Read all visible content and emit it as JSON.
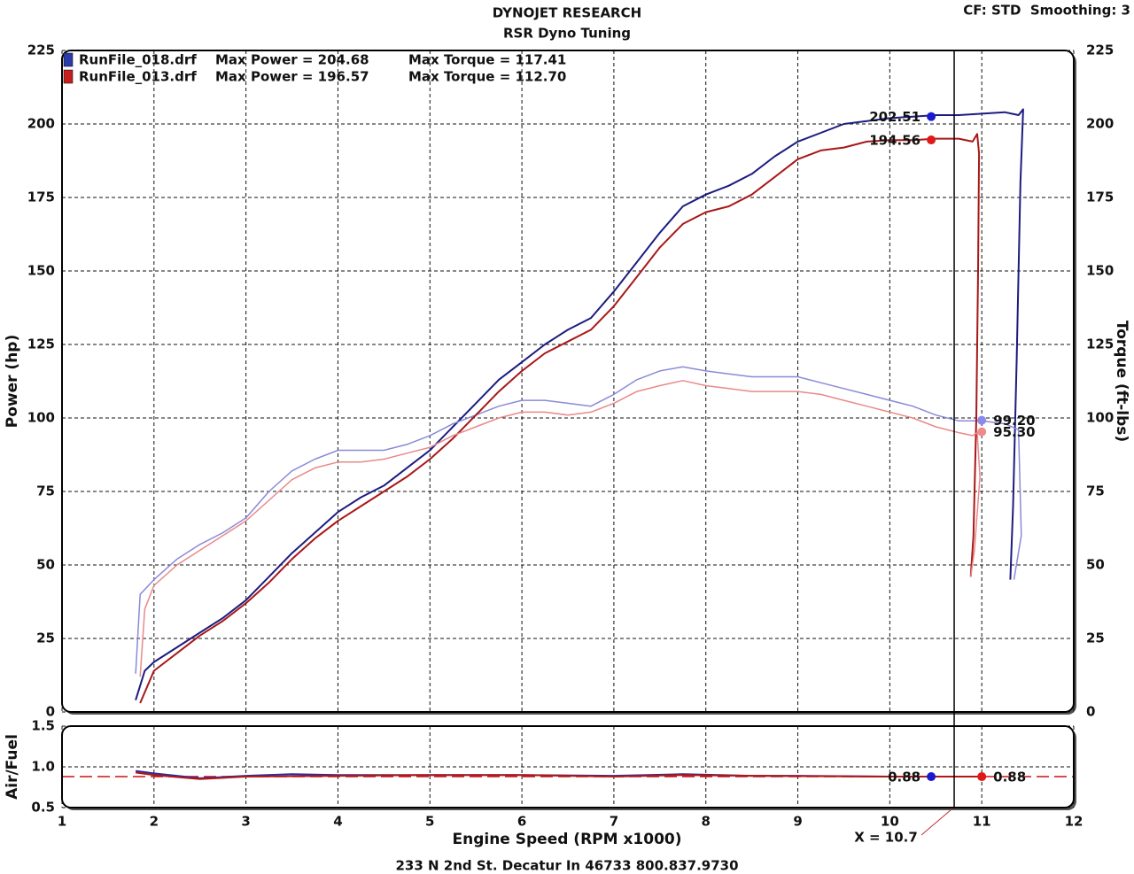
{
  "header": {
    "title": "DYNOJET RESEARCH",
    "subtitle": "RSR Dyno Tuning",
    "settings": "CF: STD  Smoothing: 3",
    "footer": "233 N 2nd St. Decatur In 46733 800.837.9730"
  },
  "chart_data": [
    {
      "type": "line",
      "ylabel": "Power (hp)",
      "y2label": "Torque (ft-lbs)",
      "xlim": [
        1,
        12
      ],
      "xticks": [
        1,
        2,
        3,
        4,
        5,
        6,
        7,
        8,
        9,
        10,
        11,
        12
      ],
      "ylim": [
        0,
        225
      ],
      "yticks": [
        0,
        25,
        50,
        75,
        100,
        125,
        150,
        175,
        200,
        225
      ],
      "y2lim": [
        0,
        225
      ],
      "y2ticks": [
        0,
        25,
        50,
        75,
        100,
        125,
        150,
        175,
        200,
        225
      ],
      "grid": true,
      "legend": [
        {
          "name": "RunFile_018.drf",
          "max_power": "Max Power = 204.68",
          "max_torque": "Max Torque = 117.41",
          "color": "#2a3aa8"
        },
        {
          "name": "RunFile_013.drf",
          "max_power": "Max Power = 196.57",
          "max_torque": "Max Torque = 112.70",
          "color": "#c42020"
        }
      ],
      "cursor": {
        "x": 10.7,
        "label": "X = 10.7"
      },
      "series": [
        {
          "color": "#1c1c80",
          "x": [
            1.8,
            1.9,
            2.0,
            2.25,
            2.5,
            2.75,
            3.0,
            3.25,
            3.5,
            3.75,
            4.0,
            4.25,
            4.5,
            4.75,
            5.0,
            5.25,
            5.5,
            5.75,
            6.0,
            6.25,
            6.5,
            6.75,
            7.0,
            7.25,
            7.5,
            7.75,
            8.0,
            8.25,
            8.5,
            8.75,
            9.0,
            9.25,
            9.5,
            9.75,
            10.0,
            10.25,
            10.5,
            10.75,
            11.0,
            11.25,
            11.4,
            11.45,
            11.42,
            11.38,
            11.34,
            11.31
          ],
          "values": [
            4,
            14,
            17,
            22,
            27,
            32,
            38,
            46,
            54,
            61,
            68,
            73,
            77,
            83,
            89,
            97,
            105,
            113,
            119,
            125,
            130,
            134,
            143,
            153,
            163,
            172,
            176,
            179,
            183,
            189,
            194,
            197,
            200,
            201,
            202,
            202.5,
            203,
            203,
            203.5,
            204,
            203,
            205,
            180,
            120,
            70,
            45
          ]
        },
        {
          "color": "#8a8ad8",
          "axis": "y2",
          "x": [
            1.8,
            1.85,
            2.0,
            2.25,
            2.5,
            2.75,
            3.0,
            3.25,
            3.5,
            3.75,
            4.0,
            4.25,
            4.5,
            4.75,
            5.0,
            5.25,
            5.5,
            5.75,
            6.0,
            6.25,
            6.5,
            6.75,
            7.0,
            7.25,
            7.5,
            7.75,
            8.0,
            8.25,
            8.5,
            8.75,
            9.0,
            9.25,
            9.5,
            9.75,
            10.0,
            10.25,
            10.5,
            10.75,
            11.0,
            11.25,
            11.4,
            11.43,
            11.35
          ],
          "values": [
            13,
            40,
            45,
            52,
            57,
            61,
            66,
            75,
            82,
            86,
            89,
            89,
            89,
            91,
            94,
            98,
            101,
            104,
            106,
            106,
            105,
            104,
            108,
            113,
            116,
            117.4,
            116,
            115,
            114,
            114,
            114,
            112,
            110,
            108,
            106,
            104,
            101,
            99,
            99,
            98,
            96,
            60,
            45
          ]
        },
        {
          "color": "#a81818",
          "x": [
            1.85,
            2.0,
            2.25,
            2.5,
            2.75,
            3.0,
            3.25,
            3.5,
            3.75,
            4.0,
            4.25,
            4.5,
            4.75,
            5.0,
            5.25,
            5.5,
            5.75,
            6.0,
            6.25,
            6.5,
            6.75,
            7.0,
            7.25,
            7.5,
            7.75,
            8.0,
            8.25,
            8.5,
            8.75,
            9.0,
            9.25,
            9.5,
            9.75,
            10.0,
            10.25,
            10.5,
            10.75,
            10.9,
            10.95,
            10.97,
            10.96,
            10.94,
            10.91,
            10.88
          ],
          "values": [
            3,
            14,
            20,
            26,
            31,
            37,
            44,
            52,
            59,
            65,
            70,
            75,
            80,
            86,
            93,
            101,
            109,
            116,
            122,
            126,
            130,
            138,
            148,
            158,
            166,
            170,
            172,
            176,
            182,
            188,
            191,
            192,
            194,
            194.5,
            194.5,
            195,
            195,
            194,
            196.6,
            190,
            150,
            100,
            60,
            46
          ]
        },
        {
          "color": "#e88a8a",
          "axis": "y2",
          "x": [
            1.85,
            1.9,
            2.0,
            2.25,
            2.5,
            2.75,
            3.0,
            3.25,
            3.5,
            3.75,
            4.0,
            4.25,
            4.5,
            4.75,
            5.0,
            5.25,
            5.5,
            5.75,
            6.0,
            6.25,
            6.5,
            6.75,
            7.0,
            7.25,
            7.5,
            7.75,
            8.0,
            8.25,
            8.5,
            8.75,
            9.0,
            9.25,
            9.5,
            9.75,
            10.0,
            10.25,
            10.5,
            10.75,
            10.9,
            10.95,
            10.98,
            10.92,
            10.88
          ],
          "values": [
            12,
            35,
            43,
            50,
            55,
            60,
            65,
            72,
            79,
            83,
            85,
            85,
            86,
            88,
            90,
            94,
            97,
            100,
            102,
            102,
            101,
            102,
            105,
            109,
            111,
            112.7,
            111,
            110,
            109,
            109,
            109,
            108,
            106,
            104,
            102,
            100,
            97,
            95,
            94,
            95,
            80,
            55,
            46
          ]
        }
      ],
      "markers": {
        "x": [
          10.45,
          10.45,
          11.0,
          11.0
        ],
        "values": [
          202.51,
          194.56,
          99.2,
          95.3
        ],
        "value_labels": [
          "202.51",
          "194.56",
          "99.20",
          "95.30"
        ],
        "colors": [
          "#1a1ad0",
          "#e01818",
          "#8a8ae8",
          "#f08a8a"
        ]
      }
    },
    {
      "type": "line",
      "ylabel": "Air/Fuel",
      "xlabel": "Engine Speed (RPM x1000)",
      "xlim": [
        1,
        12
      ],
      "xticks": [
        1,
        2,
        3,
        4,
        5,
        6,
        7,
        8,
        9,
        10,
        11,
        12
      ],
      "ylim": [
        0.5,
        1.5
      ],
      "yticks": [
        {
          "value": 0.5,
          "label": "0.5"
        },
        {
          "value": 1.0,
          "label": "1.0"
        },
        {
          "value": 1.5,
          "label": "1.5"
        }
      ],
      "grid": true,
      "reference_line": {
        "value": 0.88,
        "color": "#cc1010"
      },
      "series": [
        {
          "color": "#2a2aa0",
          "x": [
            1.8,
            2.0,
            2.5,
            3.0,
            3.5,
            4.0,
            5.0,
            6.0,
            7.0,
            7.75,
            8.5,
            9.0,
            10.0,
            10.7,
            11.0
          ],
          "values": [
            0.95,
            0.92,
            0.86,
            0.89,
            0.91,
            0.9,
            0.9,
            0.9,
            0.89,
            0.91,
            0.89,
            0.89,
            0.88,
            0.88,
            0.88
          ]
        },
        {
          "color": "#b01818",
          "x": [
            1.8,
            2.0,
            2.5,
            3.0,
            4.0,
            5.0,
            6.0,
            7.0,
            7.75,
            8.5,
            10.0,
            11.0
          ],
          "values": [
            0.93,
            0.9,
            0.85,
            0.88,
            0.89,
            0.9,
            0.9,
            0.88,
            0.9,
            0.89,
            0.88,
            0.88
          ]
        }
      ],
      "markers": {
        "x": [
          10.45,
          11.0
        ],
        "values": [
          0.88,
          0.88
        ],
        "colors": [
          "#1a1ad0",
          "#e01818"
        ]
      }
    }
  ]
}
